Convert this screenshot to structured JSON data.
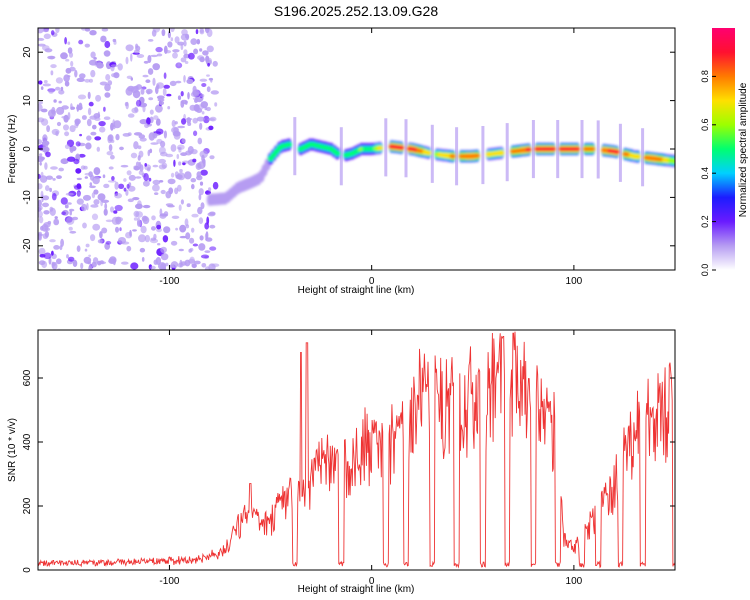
{
  "figure_title": "S196.2025.252.13.09.G28",
  "chart_data": [
    {
      "type": "heatmap",
      "title": "S196.2025.252.13.09.G28",
      "xlabel": "Height of straight line (km)",
      "ylabel": "Frequency (Hz)",
      "xlim": [
        -165,
        150
      ],
      "ylim": [
        -25,
        25
      ],
      "x_ticks": [
        -100,
        0,
        100
      ],
      "y_ticks": [
        -20,
        -10,
        0,
        10,
        20
      ],
      "x_tick_labels": [
        "-100",
        "0",
        "100"
      ],
      "y_tick_labels": [
        "-20",
        "-10",
        "0",
        "10",
        "20"
      ],
      "colorbar": {
        "label": "Normalized spectral amplitude",
        "range": [
          0,
          1
        ],
        "ticks": [
          0.0,
          0.2,
          0.4,
          0.6,
          0.8
        ],
        "tick_labels": [
          "0.0",
          "0.2",
          "0.4",
          "0.6",
          "0.8"
        ],
        "colors": [
          "#ffffff",
          "#b69cf2",
          "#6a1bff",
          "#1c1cff",
          "#00d0ff",
          "#00ff70",
          "#9cff00",
          "#ffe000",
          "#ff7a00",
          "#ff1030",
          "#ff0070"
        ]
      },
      "noise_region": {
        "x_range": [
          -165,
          -80
        ],
        "freq_range": [
          -25,
          25
        ],
        "typical_amplitude": 0.1
      },
      "ridge": {
        "x": [
          -80,
          -72,
          -66,
          -60,
          -55,
          -50,
          -45,
          -40,
          -35,
          -30,
          -25,
          -20,
          -15,
          -10,
          -5,
          0,
          10,
          20,
          30,
          40,
          50,
          60,
          70,
          80,
          90,
          100,
          110,
          120,
          130,
          140,
          150
        ],
        "frequency": [
          -10.5,
          -10.2,
          -8,
          -7,
          -6,
          -2,
          0.5,
          1,
          0,
          1,
          0.5,
          0,
          -1.5,
          -1,
          0,
          0,
          0.5,
          0,
          -1,
          -1.5,
          -1.5,
          -1,
          -0.5,
          0,
          0,
          0,
          0,
          -0.5,
          -1.5,
          -2,
          -2.5
        ],
        "amplitude": [
          0.2,
          0.25,
          0.3,
          0.3,
          0.35,
          0.45,
          0.5,
          0.45,
          0.5,
          0.55,
          0.5,
          0.45,
          0.45,
          0.5,
          0.55,
          0.5,
          0.9,
          0.92,
          0.6,
          0.75,
          0.85,
          0.65,
          0.75,
          0.9,
          0.85,
          0.9,
          0.75,
          0.9,
          0.7,
          0.85,
          0.6
        ]
      },
      "ridge_gaps_x": [
        -38,
        -15,
        7,
        17,
        30,
        42,
        55,
        67,
        80,
        92,
        104,
        112,
        123,
        134
      ]
    },
    {
      "type": "line",
      "series": [
        {
          "name": "SNR",
          "color": "#ee3333"
        }
      ],
      "xlabel": "Height of straight line (km)",
      "ylabel": "SNR (10 * v/v)",
      "xlim": [
        -165,
        150
      ],
      "ylim": [
        0,
        750
      ],
      "x_ticks": [
        -100,
        0,
        100
      ],
      "y_ticks": [
        0,
        200,
        400,
        600
      ],
      "x_tick_labels": [
        "-100",
        "0",
        "100"
      ],
      "y_tick_labels": [
        "0",
        "200",
        "400",
        "600"
      ],
      "envelope": {
        "x": [
          -165,
          -140,
          -120,
          -100,
          -90,
          -80,
          -75,
          -70,
          -65,
          -60,
          -55,
          -50,
          -45,
          -40,
          -35,
          -30,
          -25,
          -20,
          -15,
          -10,
          -5,
          0,
          5,
          10,
          15,
          20,
          25,
          30,
          35,
          40,
          45,
          50,
          55,
          60,
          65,
          70,
          75,
          80,
          85,
          90,
          95,
          100,
          105,
          110,
          115,
          120,
          125,
          130,
          135,
          140,
          145,
          150
        ],
        "y": [
          22,
          22,
          25,
          28,
          32,
          40,
          60,
          100,
          180,
          200,
          170,
          180,
          240,
          300,
          260,
          320,
          380,
          400,
          350,
          420,
          470,
          450,
          460,
          480,
          520,
          600,
          650,
          640,
          620,
          610,
          630,
          640,
          620,
          680,
          700,
          720,
          690,
          600,
          560,
          520,
          120,
          80,
          140,
          190,
          250,
          320,
          420,
          500,
          560,
          580,
          600,
          600
        ]
      },
      "spikes": [
        {
          "x": -60,
          "y": 270
        },
        {
          "x": -32,
          "y": 710
        },
        {
          "x": -35,
          "y": 680
        },
        {
          "x": 70,
          "y": 740
        },
        {
          "x": 65,
          "y": 730
        }
      ],
      "dropout_x": [
        -38,
        -15,
        7,
        17,
        30,
        42,
        55,
        67,
        80,
        92,
        104,
        112,
        123,
        134,
        150
      ]
    }
  ]
}
